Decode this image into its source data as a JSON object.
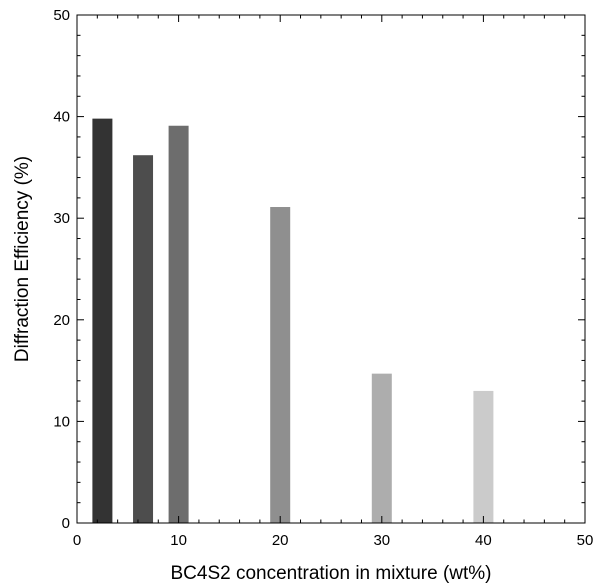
{
  "chart_data": {
    "type": "bar",
    "title": "",
    "xlabel": "BC4S2 concentration in mixture (wt%)",
    "ylabel": "Diffraction Efficiency (%)",
    "x": [
      2.5,
      6.5,
      10,
      20,
      30,
      40
    ],
    "values": [
      39.8,
      36.2,
      39.1,
      31.1,
      14.7,
      13.0
    ],
    "bar_colors": [
      "#333333",
      "#4d4d4d",
      "#6d6d6d",
      "#8f8f8f",
      "#adadad",
      "#cbcbcb"
    ],
    "xlim": [
      0,
      50
    ],
    "ylim": [
      0,
      50
    ],
    "xticks": [
      0,
      10,
      20,
      30,
      40,
      50
    ],
    "yticks": [
      0,
      10,
      20,
      30,
      40,
      50
    ],
    "xtick_labels": [
      "0",
      "10",
      "20",
      "30",
      "40",
      "50"
    ],
    "ytick_labels": [
      "0",
      "10",
      "20",
      "30",
      "40",
      "50"
    ],
    "grid": false,
    "legend": false
  }
}
